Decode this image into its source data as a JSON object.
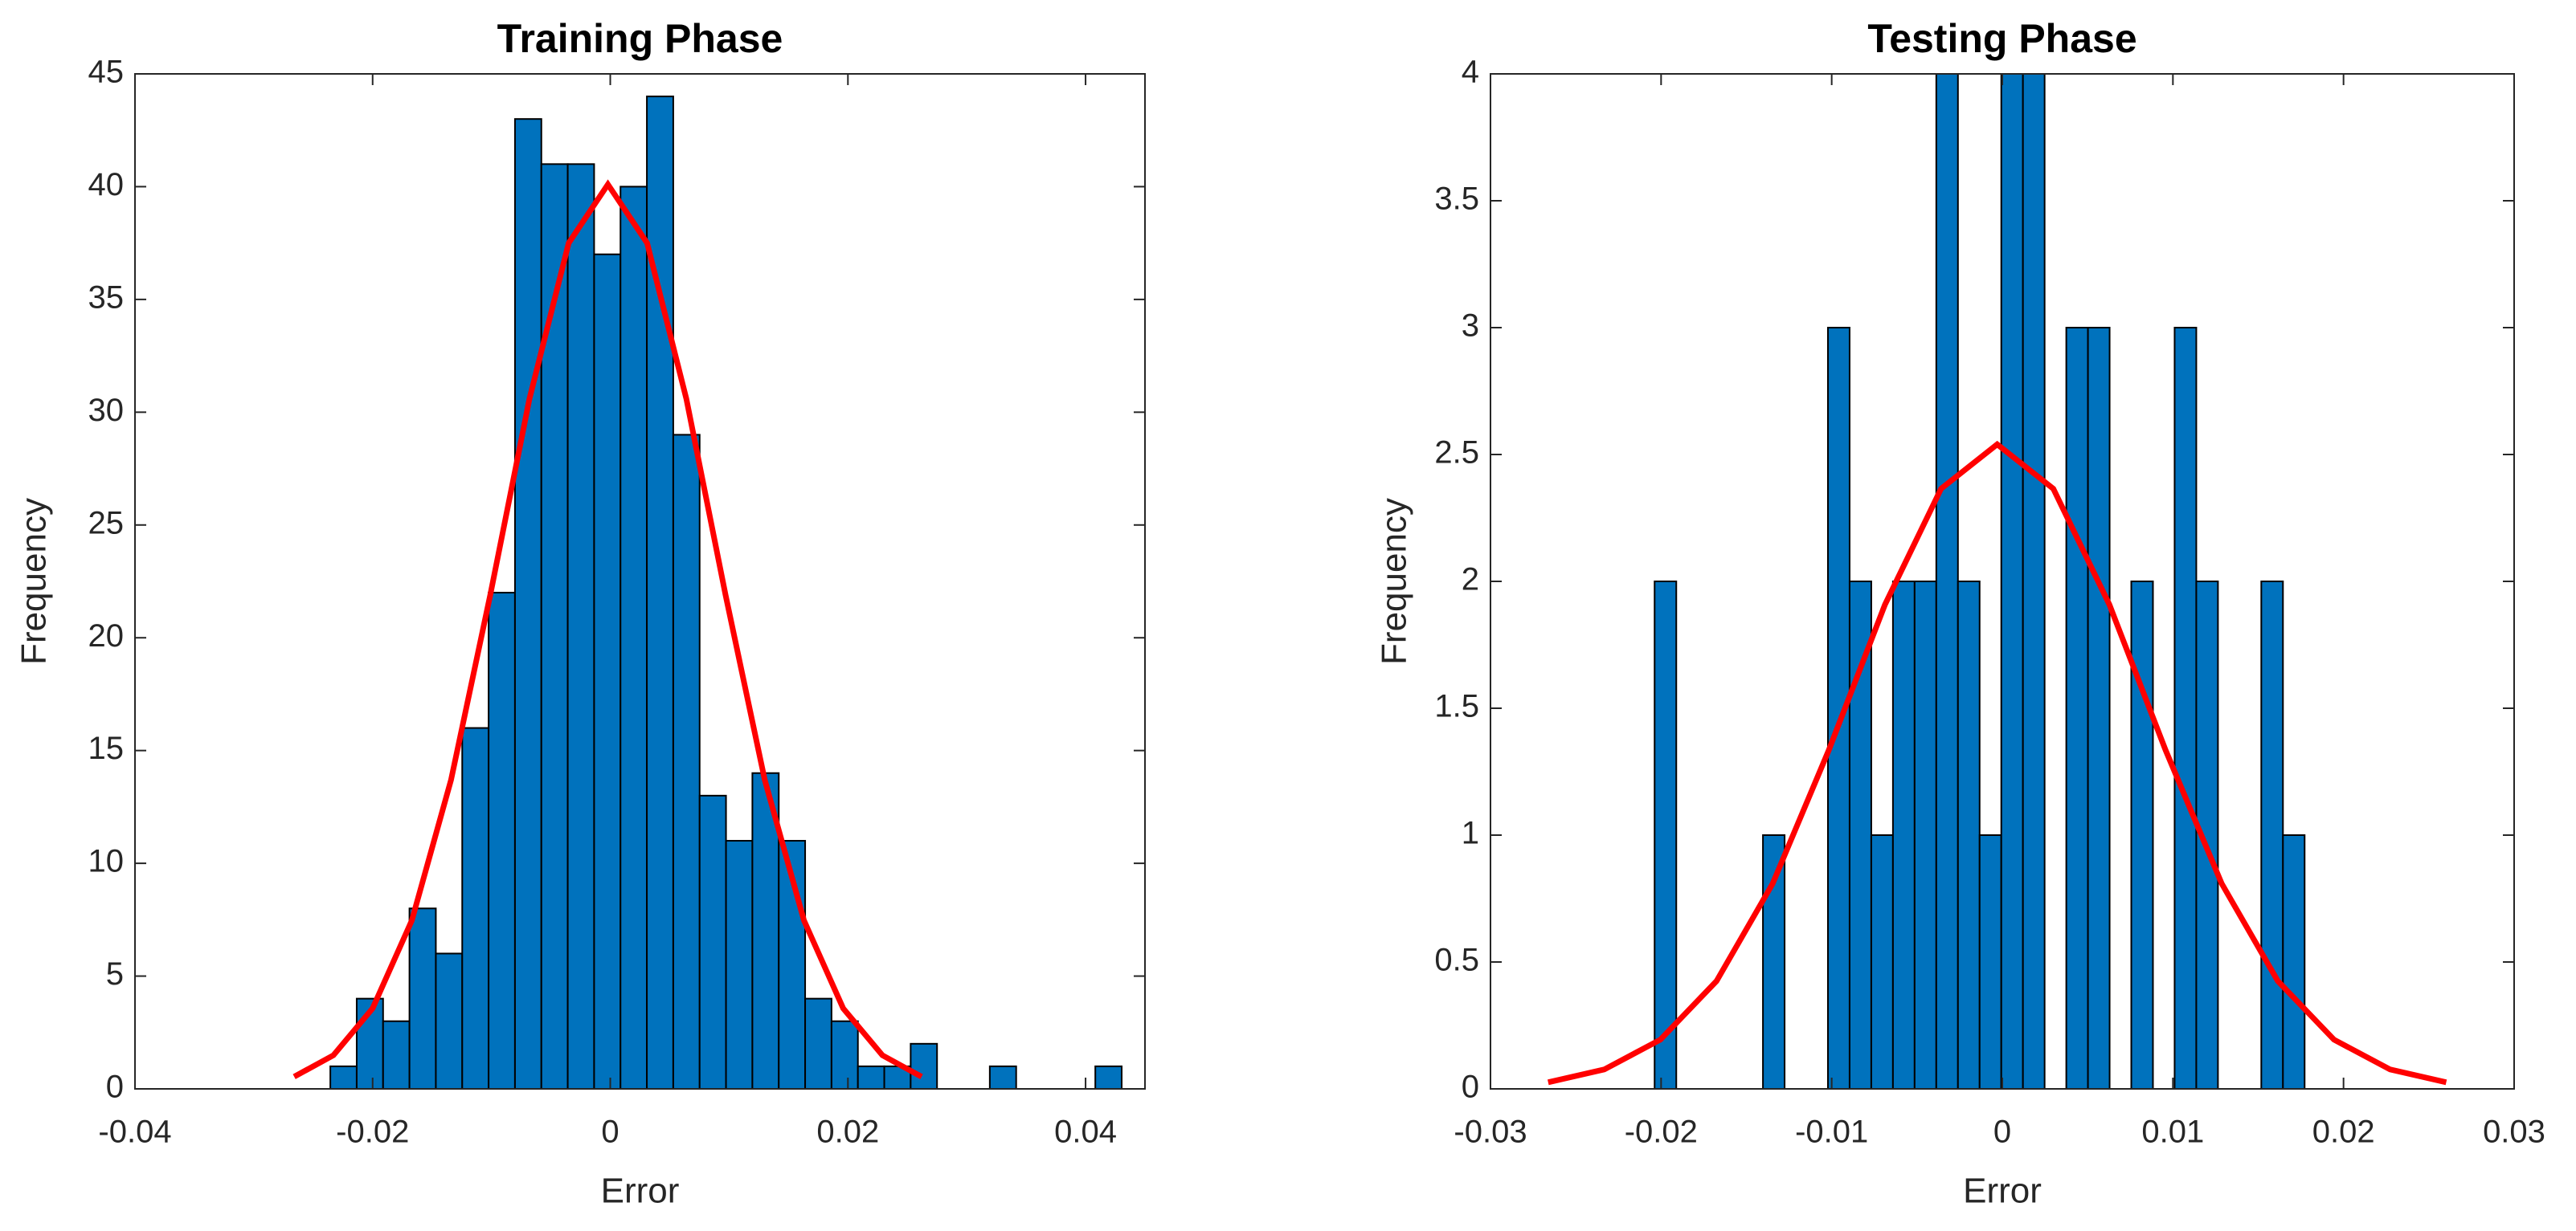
{
  "chart_data": [
    {
      "type": "histogram",
      "title": "Training Phase",
      "xlabel": "Error",
      "ylabel": "Frequency",
      "color": "#0072bd",
      "bins": [
        -0.02356,
        -0.02134,
        -0.01912,
        -0.0169,
        -0.01468,
        -0.01246,
        -0.01024,
        -0.00802,
        -0.0058,
        -0.00358,
        -0.00136,
        0.00086,
        0.00308,
        0.0053,
        0.00752,
        0.00974,
        0.01196,
        0.01418,
        0.0164,
        0.01862,
        0.02084,
        0.02306,
        0.02528,
        0.0275,
        0.02972,
        0.03194,
        0.03416,
        0.03638,
        0.0386,
        0.04082,
        0.04304
      ],
      "values": [
        1,
        4,
        3,
        8,
        6,
        16,
        22,
        43,
        41,
        41,
        37,
        40,
        44,
        29,
        13,
        11,
        14,
        11,
        4,
        3,
        1,
        1,
        2,
        0,
        0,
        1,
        0,
        0,
        0,
        1
      ],
      "fit": {
        "color": "#ff0000",
        "x": [
          -0.0266,
          -0.0233,
          -0.02,
          -0.0167,
          -0.0134,
          -0.0101,
          -0.0068,
          -0.0035,
          -0.0002,
          0.0031,
          0.0064,
          0.0097,
          0.013,
          0.0163,
          0.0196,
          0.0229,
          0.0262
        ],
        "values": [
          0.54,
          1.49,
          3.57,
          7.47,
          13.7,
          21.9,
          30.6,
          37.5,
          40.1,
          37.5,
          30.6,
          21.9,
          13.7,
          7.47,
          3.57,
          1.49,
          0.54
        ]
      },
      "xlim": [
        -0.04,
        0.045
      ],
      "xticks": [
        -0.04,
        -0.02,
        0,
        0.02,
        0.04
      ],
      "ylim": [
        0,
        45
      ],
      "yticks": [
        0,
        5,
        10,
        15,
        20,
        25,
        30,
        35,
        40,
        45
      ],
      "grid": false
    },
    {
      "type": "histogram",
      "title": "Testing Phase",
      "xlabel": "Error",
      "ylabel": "Frequency",
      "color": "#0072bd",
      "bins": [
        -0.02038,
        -0.01911,
        -0.01784,
        -0.01657,
        -0.0153,
        -0.01403,
        -0.01276,
        -0.01149,
        -0.01022,
        -0.00895,
        -0.00768,
        -0.00641,
        -0.00514,
        -0.00387,
        -0.0026,
        -0.00133,
        -6e-05,
        0.00121,
        0.00248,
        0.00375,
        0.00502,
        0.00629,
        0.00756,
        0.00883,
        0.0101,
        0.01137,
        0.01264,
        0.01391,
        0.01518,
        0.01645,
        0.01772
      ],
      "values": [
        2,
        0,
        0,
        0,
        0,
        1,
        0,
        0,
        3,
        2,
        1,
        2,
        2,
        4,
        2,
        1,
        4,
        4,
        0,
        3,
        3,
        0,
        2,
        0,
        3,
        2,
        0,
        0,
        2,
        1
      ],
      "fit": {
        "color": "#ff0000",
        "x": [
          -0.02662,
          -0.02333,
          -0.02004,
          -0.01675,
          -0.01346,
          -0.01017,
          -0.00688,
          -0.00359,
          -0.0003,
          0.00299,
          0.00628,
          0.00957,
          0.01286,
          0.01615,
          0.01944,
          0.02273,
          0.02602
        ],
        "values": [
          0.026,
          0.0765,
          0.194,
          0.425,
          0.809,
          1.335,
          1.908,
          2.365,
          2.54,
          2.365,
          1.908,
          1.335,
          0.809,
          0.425,
          0.194,
          0.0765,
          0.026
        ]
      },
      "xlim": [
        -0.03,
        0.03
      ],
      "xticks": [
        -0.03,
        -0.02,
        -0.01,
        0,
        0.01,
        0.02,
        0.03
      ],
      "ylim": [
        0,
        4
      ],
      "yticks": [
        0,
        0.5,
        1,
        1.5,
        2,
        2.5,
        3,
        3.5,
        4
      ],
      "grid": false
    }
  ]
}
